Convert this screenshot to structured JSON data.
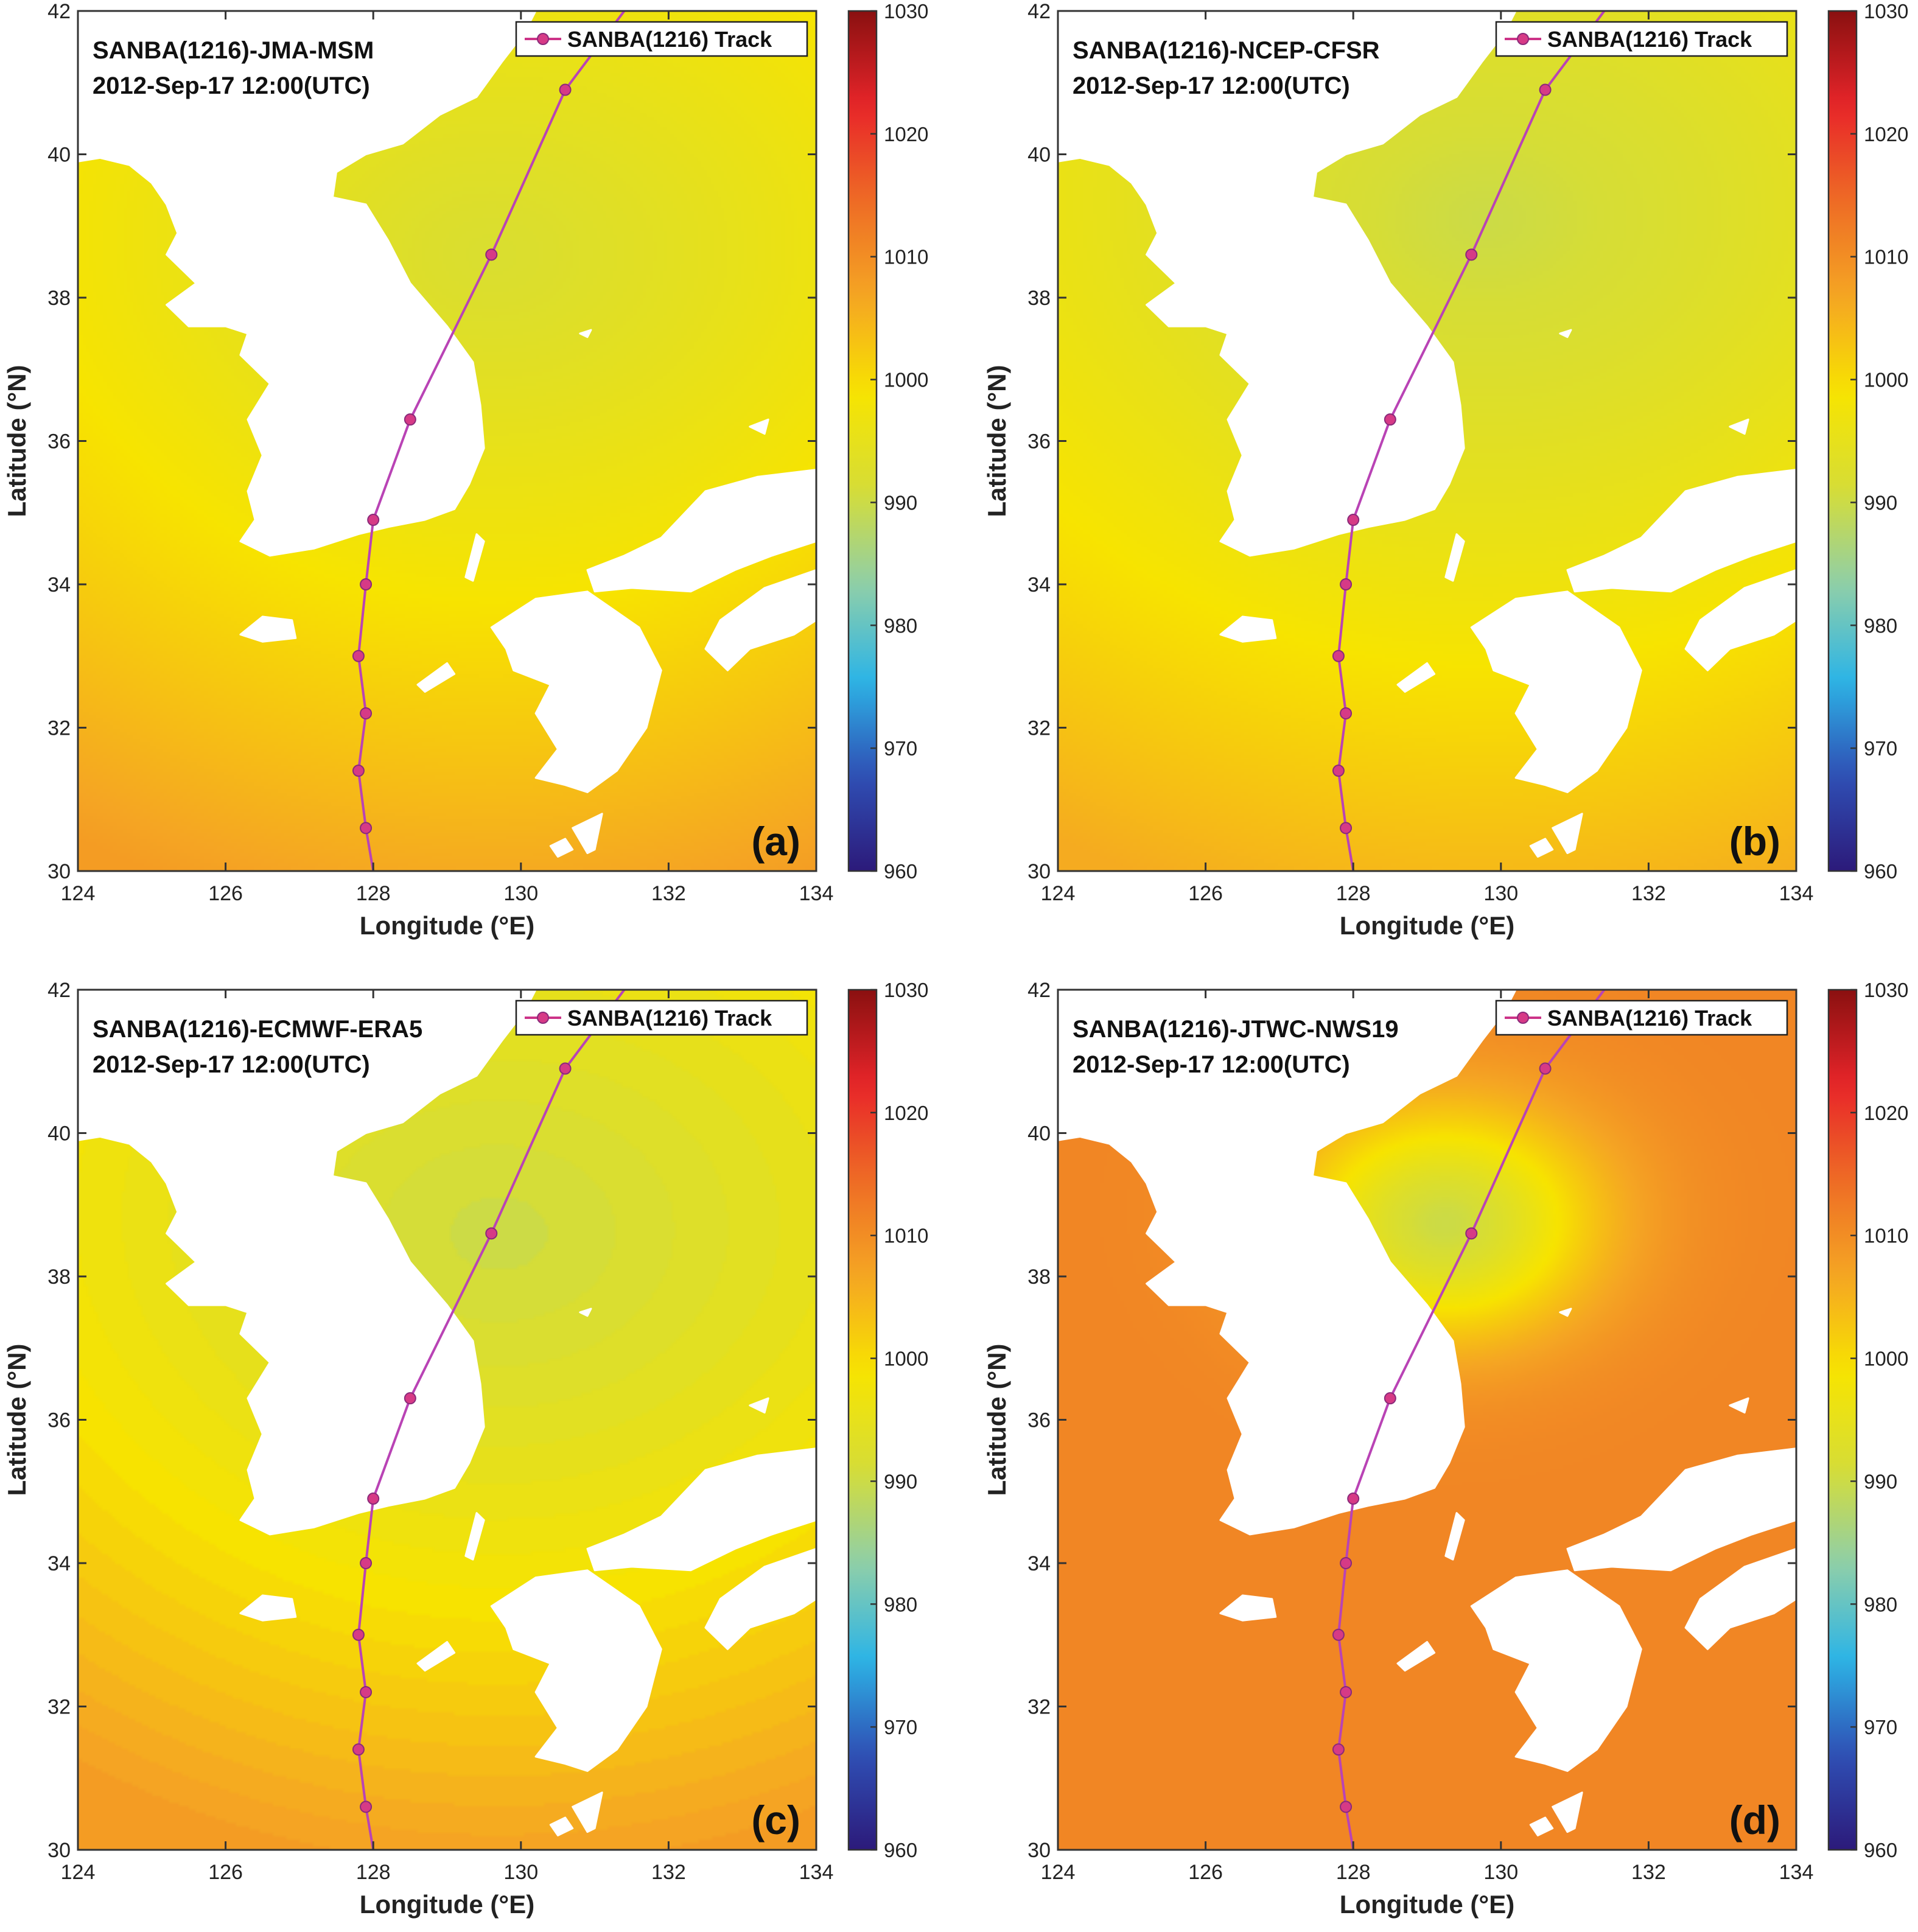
{
  "panels": [
    {
      "id": "a",
      "title": "SANBA(1216)-JMA-MSM",
      "datetime": "2012-Sep-17 12:00(UTC)",
      "panel_label": "(a)",
      "field": {
        "center": [
          129.6,
          38.6
        ],
        "center_value": 992,
        "far_value": 1008,
        "radius_deg": 9.5,
        "falloff": "gradual"
      }
    },
    {
      "id": "b",
      "title": "SANBA(1216)-NCEP-CFSR",
      "datetime": "2012-Sep-17 12:00(UTC)",
      "panel_label": "(b)",
      "field": {
        "center": [
          129.8,
          39.1
        ],
        "center_value": 990,
        "far_value": 1006,
        "radius_deg": 10,
        "falloff": "gradual"
      }
    },
    {
      "id": "c",
      "title": "SANBA(1216)-ECMWF-ERA5",
      "datetime": "2012-Sep-17 12:00(UTC)",
      "panel_label": "(c)",
      "field": {
        "center": [
          129.7,
          38.6
        ],
        "center_value": 990,
        "far_value": 1008,
        "radius_deg": 9,
        "falloff": "banded"
      }
    },
    {
      "id": "d",
      "title": "SANBA(1216)-JTWC-NWS19",
      "datetime": "2012-Sep-17 12:00(UTC)",
      "panel_label": "(d)",
      "field": {
        "center": [
          129.25,
          38.75
        ],
        "center_value": 990,
        "far_value": 1011,
        "radius_deg": 1.6,
        "falloff": "sharp"
      }
    }
  ],
  "axes": {
    "x_label": "Longitude (°E)",
    "y_label": "Latitude (°N)",
    "x_range": [
      124,
      134
    ],
    "y_range": [
      30,
      42
    ],
    "x_ticks": [
      124,
      126,
      128,
      130,
      132,
      134
    ],
    "y_ticks": [
      30,
      32,
      34,
      36,
      38,
      40,
      42
    ]
  },
  "colorbar": {
    "range": [
      960,
      1030
    ],
    "ticks": [
      960,
      970,
      980,
      990,
      1000,
      1010,
      1020,
      1030
    ],
    "colormap": [
      "#2c1a7a",
      "#2f4fb5",
      "#2db4e6",
      "#8fcfa8",
      "#d6dd36",
      "#f7e400",
      "#f5a623",
      "#ee6c25",
      "#e8252a",
      "#8a1010"
    ]
  },
  "legend": {
    "label": "SANBA(1216) Track",
    "color": "#cc3388",
    "marker_color": "#d63a86"
  },
  "track": {
    "color": "#b943b5",
    "points": [
      [
        128.0,
        30.0
      ],
      [
        127.9,
        30.6
      ],
      [
        127.8,
        31.4
      ],
      [
        127.9,
        32.2
      ],
      [
        127.8,
        33.0
      ],
      [
        127.9,
        34.0
      ],
      [
        128.0,
        34.9
      ],
      [
        128.5,
        36.3
      ],
      [
        129.6,
        38.6
      ],
      [
        130.6,
        40.9
      ],
      [
        131.4,
        42.0
      ]
    ],
    "markers": [
      [
        127.9,
        30.6
      ],
      [
        127.8,
        31.4
      ],
      [
        127.9,
        32.2
      ],
      [
        127.8,
        33.0
      ],
      [
        127.9,
        34.0
      ],
      [
        128.0,
        34.9
      ],
      [
        128.5,
        36.3
      ],
      [
        129.6,
        38.6
      ],
      [
        130.6,
        40.9
      ]
    ]
  },
  "land_color": "#ffffff",
  "land": {
    "china": [
      [
        124,
        39.9
      ],
      [
        124.3,
        39.95
      ],
      [
        124.7,
        39.85
      ],
      [
        125.0,
        39.6
      ],
      [
        125.2,
        39.3
      ],
      [
        125.35,
        38.9
      ],
      [
        125.2,
        38.6
      ],
      [
        125.6,
        38.2
      ],
      [
        125.2,
        37.9
      ],
      [
        125.5,
        37.6
      ],
      [
        126.0,
        37.6
      ],
      [
        126.3,
        37.5
      ],
      [
        126.2,
        37.2
      ],
      [
        126.6,
        36.8
      ],
      [
        126.3,
        36.3
      ],
      [
        126.5,
        35.8
      ],
      [
        126.3,
        35.3
      ],
      [
        126.4,
        34.9
      ],
      [
        126.2,
        34.6
      ],
      [
        126.6,
        34.4
      ],
      [
        127.2,
        34.5
      ],
      [
        127.8,
        34.7
      ],
      [
        128.2,
        34.8
      ],
      [
        128.7,
        34.9
      ],
      [
        129.1,
        35.05
      ],
      [
        129.3,
        35.4
      ],
      [
        129.5,
        35.9
      ],
      [
        129.45,
        36.5
      ],
      [
        129.35,
        37.1
      ],
      [
        129.0,
        37.6
      ],
      [
        128.5,
        38.2
      ],
      [
        128.2,
        38.8
      ],
      [
        127.9,
        39.3
      ],
      [
        127.45,
        39.4
      ],
      [
        127.5,
        39.75
      ],
      [
        127.9,
        40.0
      ],
      [
        128.4,
        40.15
      ],
      [
        128.9,
        40.55
      ],
      [
        129.4,
        40.8
      ],
      [
        129.75,
        41.3
      ],
      [
        130.05,
        41.7
      ],
      [
        130.2,
        42
      ],
      [
        124,
        42
      ]
    ],
    "honshu": [
      [
        130.9,
        34.2
      ],
      [
        131.4,
        34.4
      ],
      [
        131.9,
        34.65
      ],
      [
        132.5,
        35.3
      ],
      [
        133.2,
        35.5
      ],
      [
        134,
        35.6
      ],
      [
        134,
        34.6
      ],
      [
        133.4,
        34.4
      ],
      [
        132.9,
        34.2
      ],
      [
        132.3,
        33.9
      ],
      [
        131.5,
        33.95
      ],
      [
        131.0,
        33.9
      ]
    ],
    "shikoku": [
      [
        132.5,
        33.1
      ],
      [
        132.7,
        33.5
      ],
      [
        133.3,
        33.95
      ],
      [
        134,
        34.2
      ],
      [
        134,
        33.5
      ],
      [
        133.7,
        33.3
      ],
      [
        133.1,
        33.1
      ],
      [
        132.8,
        32.8
      ]
    ],
    "kyushu": [
      [
        129.6,
        33.4
      ],
      [
        130.2,
        33.8
      ],
      [
        130.9,
        33.9
      ],
      [
        131.6,
        33.4
      ],
      [
        131.9,
        32.8
      ],
      [
        131.7,
        32.0
      ],
      [
        131.3,
        31.4
      ],
      [
        130.9,
        31.1
      ],
      [
        130.6,
        31.2
      ],
      [
        130.2,
        31.3
      ],
      [
        130.5,
        31.7
      ],
      [
        130.2,
        32.2
      ],
      [
        130.4,
        32.6
      ],
      [
        129.9,
        32.8
      ],
      [
        129.8,
        33.1
      ]
    ],
    "jeju": [
      [
        126.2,
        33.3
      ],
      [
        126.5,
        33.55
      ],
      [
        126.9,
        33.5
      ],
      [
        126.95,
        33.25
      ],
      [
        126.5,
        33.2
      ]
    ],
    "tsushima": [
      [
        129.25,
        34.1
      ],
      [
        129.4,
        34.7
      ],
      [
        129.5,
        34.6
      ],
      [
        129.35,
        34.05
      ]
    ],
    "goto": [
      [
        128.6,
        32.6
      ],
      [
        129.0,
        32.9
      ],
      [
        129.1,
        32.75
      ],
      [
        128.7,
        32.5
      ]
    ],
    "koshiki": [
      [
        130.7,
        30.6
      ],
      [
        131.1,
        30.8
      ],
      [
        131.0,
        30.3
      ],
      [
        130.9,
        30.25
      ]
    ],
    "yakushima": [
      [
        130.4,
        30.35
      ],
      [
        130.6,
        30.45
      ],
      [
        130.7,
        30.3
      ],
      [
        130.5,
        30.2
      ]
    ],
    "ulleungdo": [
      [
        130.8,
        37.5
      ],
      [
        130.95,
        37.55
      ],
      [
        130.9,
        37.45
      ]
    ],
    "oki": [
      [
        133.1,
        36.2
      ],
      [
        133.35,
        36.3
      ],
      [
        133.3,
        36.1
      ]
    ]
  }
}
